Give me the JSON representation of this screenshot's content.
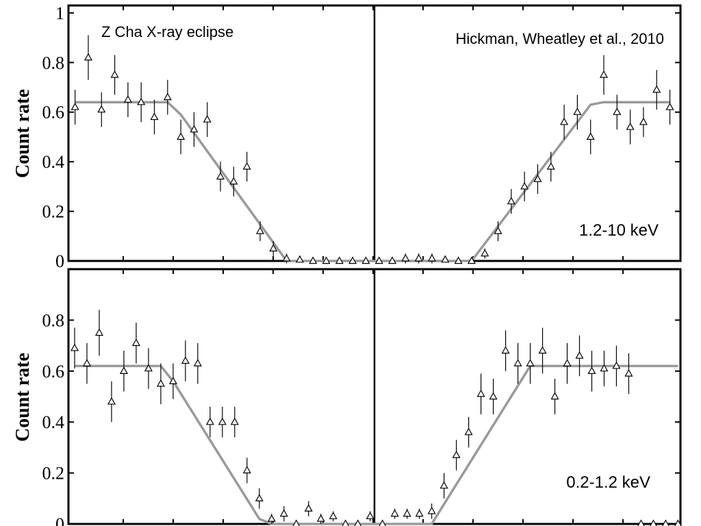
{
  "chart_data": [
    {
      "type": "scatter",
      "title": "Z Cha X-ray eclipse",
      "credit": "Hickman, Wheatley et al., 2010",
      "band_label": "1.2-10 keV",
      "ylabel": "Count rate",
      "ylim": [
        0,
        1.03
      ],
      "yticks": [
        0,
        0.2,
        0.4,
        0.6,
        0.8,
        1
      ],
      "ytick_labels": [
        "0",
        "0.2",
        "0.4",
        "0.6",
        "0.8",
        "1"
      ],
      "grid": false,
      "series": [
        {
          "marker": "triangle",
          "x": [
            1,
            2,
            3,
            4,
            5,
            6,
            7,
            8,
            9,
            10,
            11,
            12,
            13,
            14,
            15,
            16,
            17,
            18,
            19,
            20,
            21,
            22,
            23,
            24,
            25,
            26,
            27,
            28,
            29,
            30,
            31,
            32,
            33,
            34,
            35,
            36,
            37,
            38,
            39,
            40,
            41,
            42,
            43,
            44,
            45,
            46
          ],
          "y": [
            0.62,
            0.82,
            0.61,
            0.75,
            0.65,
            0.64,
            0.58,
            0.66,
            0.5,
            0.53,
            0.57,
            0.34,
            0.32,
            0.38,
            0.12,
            0.05,
            0.01,
            0.005,
            0.0,
            0.0,
            0.0,
            0.0,
            0.0,
            0.0,
            0.0,
            0.01,
            0.01,
            0.01,
            0.005,
            0.0,
            0.0,
            0.03,
            0.12,
            0.24,
            0.3,
            0.33,
            0.38,
            0.56,
            0.6,
            0.5,
            0.75,
            0.6,
            0.54,
            0.56,
            0.69,
            0.62
          ],
          "err": [
            0.07,
            0.09,
            0.07,
            0.08,
            0.07,
            0.08,
            0.07,
            0.07,
            0.07,
            0.07,
            0.07,
            0.06,
            0.06,
            0.06,
            0.04,
            0.03,
            0.02,
            0.01,
            0.0,
            0.0,
            0.0,
            0.0,
            0.0,
            0.0,
            0.0,
            0.02,
            0.02,
            0.02,
            0.01,
            0.0,
            0.0,
            0.02,
            0.04,
            0.05,
            0.06,
            0.06,
            0.06,
            0.07,
            0.07,
            0.07,
            0.08,
            0.07,
            0.07,
            0.06,
            0.08,
            0.07
          ]
        },
        {
          "style": "model",
          "x": [
            1,
            8,
            9,
            17,
            18,
            29,
            31,
            40,
            41,
            46
          ],
          "y": [
            0.64,
            0.64,
            0.59,
            0.0,
            0.0,
            0.0,
            0.0,
            0.63,
            0.64,
            0.64
          ]
        }
      ]
    },
    {
      "type": "scatter",
      "band_label": "0.2-1.2 keV",
      "ylabel": "Count rate",
      "ylim": [
        0,
        1.0
      ],
      "yticks": [
        0,
        0.2,
        0.4,
        0.6,
        0.8
      ],
      "ytick_labels": [
        "0",
        "0.2",
        "0.4",
        "0.6",
        "0.8"
      ],
      "grid": false,
      "series": [
        {
          "marker": "triangle",
          "x": [
            1,
            2,
            3,
            4,
            5,
            6,
            7,
            8,
            9,
            10,
            11,
            12,
            13,
            14,
            15,
            16,
            17,
            18,
            19,
            20,
            21,
            22,
            23,
            24,
            25,
            26,
            27,
            28,
            29,
            30,
            31,
            32,
            33,
            34,
            35,
            36,
            37,
            38,
            39,
            40,
            41,
            42,
            43,
            44,
            45,
            46,
            47,
            48,
            49,
            50
          ],
          "y": [
            0.69,
            0.63,
            0.75,
            0.48,
            0.6,
            0.71,
            0.61,
            0.55,
            0.56,
            0.64,
            0.63,
            0.4,
            0.4,
            0.4,
            0.21,
            0.1,
            0.02,
            0.04,
            0.0,
            0.06,
            0.02,
            0.03,
            0.0,
            0.0,
            0.03,
            0.0,
            0.04,
            0.04,
            0.04,
            0.05,
            0.15,
            0.27,
            0.36,
            0.51,
            0.5,
            0.68,
            0.63,
            0.63,
            0.68,
            0.5,
            0.63,
            0.66,
            0.6,
            0.61,
            0.62,
            0.59,
            0.0,
            0.0,
            0.0,
            0.0
          ],
          "err": [
            0.08,
            0.08,
            0.09,
            0.08,
            0.08,
            0.08,
            0.08,
            0.08,
            0.07,
            0.08,
            0.08,
            0.06,
            0.06,
            0.06,
            0.05,
            0.04,
            0.02,
            0.03,
            0.0,
            0.03,
            0.02,
            0.02,
            0.0,
            0.0,
            0.02,
            0.0,
            0.02,
            0.02,
            0.02,
            0.03,
            0.05,
            0.06,
            0.06,
            0.08,
            0.07,
            0.08,
            0.08,
            0.08,
            0.09,
            0.07,
            0.08,
            0.08,
            0.08,
            0.07,
            0.08,
            0.08,
            0.0,
            0.0,
            0.0,
            0.0
          ]
        },
        {
          "style": "model",
          "x": [
            1,
            8,
            9,
            16,
            17,
            29,
            30,
            38,
            39,
            50
          ],
          "y": [
            0.62,
            0.62,
            0.56,
            0.02,
            0.0,
            0.0,
            0.0,
            0.62,
            0.62,
            0.62
          ]
        }
      ]
    }
  ]
}
